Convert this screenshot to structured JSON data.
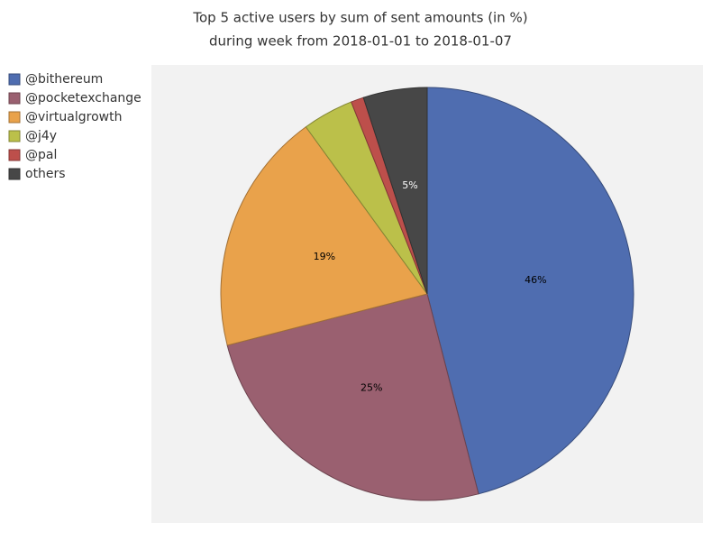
{
  "chart_data": {
    "type": "pie",
    "title": "Top 5 active users by sum of sent amounts (in %)",
    "subtitle": "during week from 2018-01-01 to 2018-01-07",
    "categories": [
      "@bithereum",
      "@pocketexchange",
      "@virtualgrowth",
      "@j4y",
      "@pal",
      "others"
    ],
    "values": [
      46,
      25,
      19,
      4,
      1,
      5
    ],
    "value_labels": [
      "46%",
      "25%",
      "19%",
      null,
      null,
      "5%"
    ],
    "colors": [
      "#4f6db0",
      "#9a6070",
      "#e9a24b",
      "#bbc04a",
      "#bd4f4b",
      "#474747"
    ],
    "legend": "left"
  }
}
